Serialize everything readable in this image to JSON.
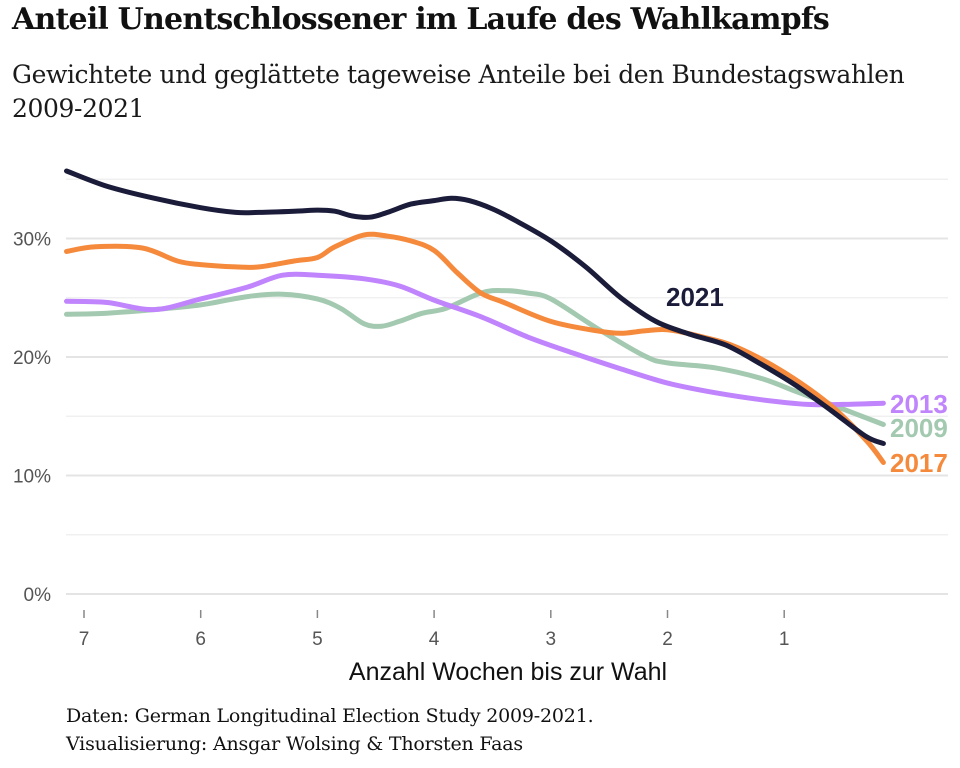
{
  "title": "Anteil Unentschlossener im Laufe des Wahlkampfs",
  "subtitle": "Gewichtete und geglättete tageweise Anteile bei den Bundestagswahlen 2009-2021",
  "caption": {
    "line1": "Daten: German Longitudinal Election Study 2009-2021.",
    "line2": "Visualisierung: Ansgar Wolsing & Thorsten Faas"
  },
  "chart_data": {
    "type": "line",
    "title": "Anteil Unentschlossener im Laufe des Wahlkampfs",
    "subtitle": "Gewichtete und geglättete tageweise Anteile bei den Bundestagswahlen 2009-2021",
    "xlabel": "Anzahl Wochen bis zur Wahl",
    "ylabel": "",
    "x_reversed": true,
    "xlim": [
      7.15,
      0.15
    ],
    "ylim": [
      0,
      35
    ],
    "x_ticks": [
      7,
      6,
      5,
      4,
      3,
      2,
      1
    ],
    "x_tick_labels": [
      "7",
      "6",
      "5",
      "4",
      "3",
      "2",
      "1"
    ],
    "y_ticks": [
      0,
      10,
      20,
      30
    ],
    "y_tick_labels": [
      "0%",
      "10%",
      "20%",
      "30%"
    ],
    "y_minor_gridlines": [
      5,
      15,
      25,
      35
    ],
    "grid": true,
    "legend": "direct labels at line ends",
    "series": [
      {
        "name": "2009",
        "color": "#a3c9b0",
        "x": [
          7.15,
          6.8,
          6.4,
          6.0,
          5.6,
          5.3,
          5.0,
          4.8,
          4.6,
          4.45,
          4.3,
          4.1,
          3.9,
          3.6,
          3.4,
          3.2,
          3.0,
          2.6,
          2.2,
          2.0,
          1.6,
          1.2,
          0.9,
          0.6,
          0.15
        ],
        "y": [
          23.6,
          23.7,
          24.0,
          24.4,
          25.1,
          25.3,
          24.9,
          24.1,
          22.8,
          22.6,
          23.0,
          23.7,
          24.1,
          25.4,
          25.6,
          25.4,
          24.9,
          22.4,
          20.1,
          19.5,
          19.1,
          18.2,
          17.1,
          16.0,
          14.3
        ]
      },
      {
        "name": "2013",
        "color": "#c084fc",
        "x": [
          7.15,
          6.8,
          6.4,
          6.0,
          5.6,
          5.3,
          5.0,
          4.6,
          4.3,
          4.0,
          3.6,
          3.2,
          2.8,
          2.4,
          2.0,
          1.6,
          1.2,
          0.8,
          0.5,
          0.15
        ],
        "y": [
          24.7,
          24.6,
          24.0,
          24.9,
          25.9,
          26.9,
          26.9,
          26.6,
          26.0,
          24.8,
          23.4,
          21.7,
          20.3,
          19.0,
          17.8,
          17.0,
          16.4,
          16.0,
          16.0,
          16.1
        ]
      },
      {
        "name": "2017",
        "color": "#f58a3c",
        "x": [
          7.15,
          6.9,
          6.5,
          6.2,
          6.0,
          5.7,
          5.5,
          5.2,
          5.0,
          4.85,
          4.6,
          4.4,
          4.2,
          4.0,
          3.8,
          3.6,
          3.4,
          3.0,
          2.6,
          2.4,
          2.2,
          2.0,
          1.7,
          1.4,
          1.0,
          0.6,
          0.3,
          0.15
        ],
        "y": [
          28.9,
          29.3,
          29.2,
          28.1,
          27.8,
          27.6,
          27.6,
          28.1,
          28.4,
          29.3,
          30.3,
          30.2,
          29.8,
          29.0,
          27.1,
          25.4,
          24.6,
          23.0,
          22.2,
          22.0,
          22.2,
          22.3,
          21.7,
          20.8,
          18.7,
          15.9,
          13.0,
          11.1
        ]
      },
      {
        "name": "2021",
        "color": "#1b1b3a",
        "x": [
          7.15,
          6.8,
          6.4,
          6.0,
          5.7,
          5.5,
          5.2,
          5.0,
          4.85,
          4.7,
          4.55,
          4.4,
          4.2,
          4.0,
          3.85,
          3.7,
          3.5,
          3.3,
          3.0,
          2.7,
          2.4,
          2.1,
          1.8,
          1.5,
          1.2,
          0.9,
          0.6,
          0.3,
          0.15
        ],
        "y": [
          35.7,
          34.4,
          33.4,
          32.6,
          32.2,
          32.2,
          32.3,
          32.4,
          32.3,
          31.9,
          31.8,
          32.2,
          32.9,
          33.2,
          33.4,
          33.2,
          32.5,
          31.5,
          29.8,
          27.6,
          25.0,
          23.0,
          21.9,
          21.0,
          19.4,
          17.6,
          15.5,
          13.3,
          12.7
        ]
      }
    ]
  },
  "labels": {
    "s2021": "2021",
    "s2013": "2013",
    "s2009": "2009",
    "s2017": "2017"
  }
}
